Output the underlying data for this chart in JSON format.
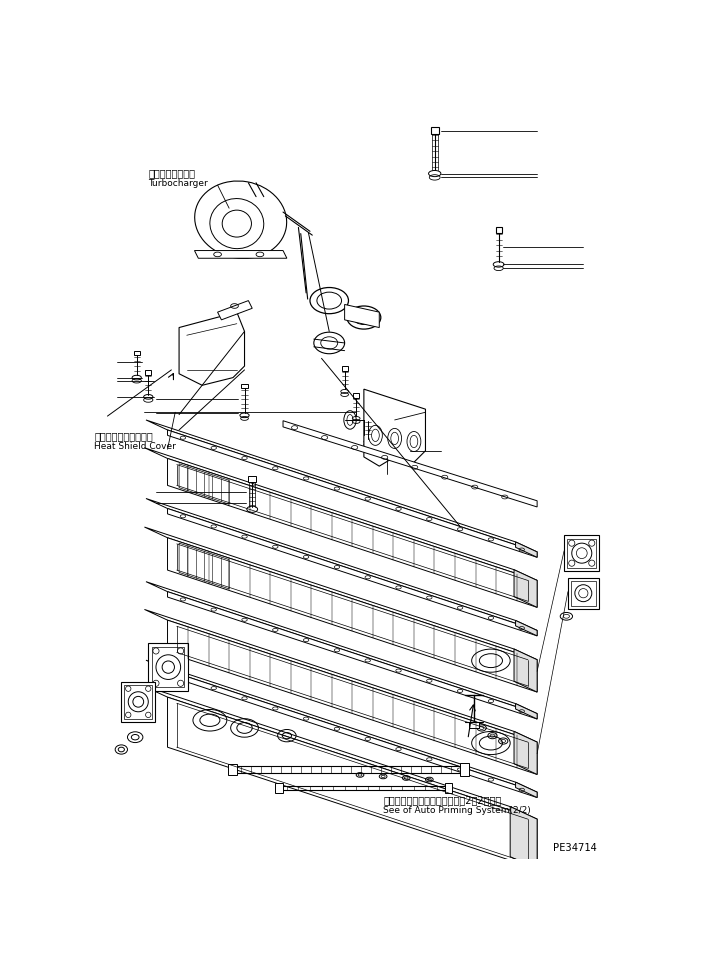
{
  "bg_color": "#ffffff",
  "line_color": "#000000",
  "fig_width": 7.1,
  "fig_height": 9.65,
  "dpi": 100,
  "labels": {
    "turbocharger_jp": "ターボチャージャ",
    "turbocharger_en": "Turbocharger",
    "heat_shield_jp": "ヒートシールドカバー",
    "heat_shield_en": "Heat Shield Cover",
    "auto_priming_jp": "オートプライミングシステム（2／2）参照",
    "auto_priming_en": "See of Auto Priming System(2/2)",
    "part_number": "PE34714"
  }
}
